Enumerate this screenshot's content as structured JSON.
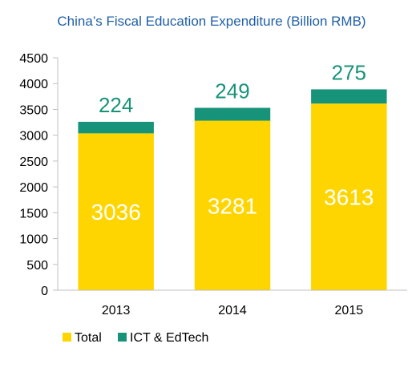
{
  "chart_data": {
    "type": "bar",
    "stacked": true,
    "title": "China’s Fiscal Education Expenditure (Billion RMB)",
    "categories": [
      "2013",
      "2014",
      "2015"
    ],
    "series": [
      {
        "name": "Total",
        "color": "#FFD500",
        "values": [
          3036,
          3281,
          3613
        ]
      },
      {
        "name": "ICT & EdTech",
        "color": "#17937A",
        "values": [
          224,
          249,
          275
        ]
      }
    ],
    "ylim": [
      0,
      4500
    ],
    "yticks": [
      "0",
      "500",
      "1000",
      "1500",
      "2000",
      "2500",
      "3000",
      "3500",
      "4000",
      "4500"
    ],
    "grid": false,
    "legend_position": "bottom-left"
  }
}
